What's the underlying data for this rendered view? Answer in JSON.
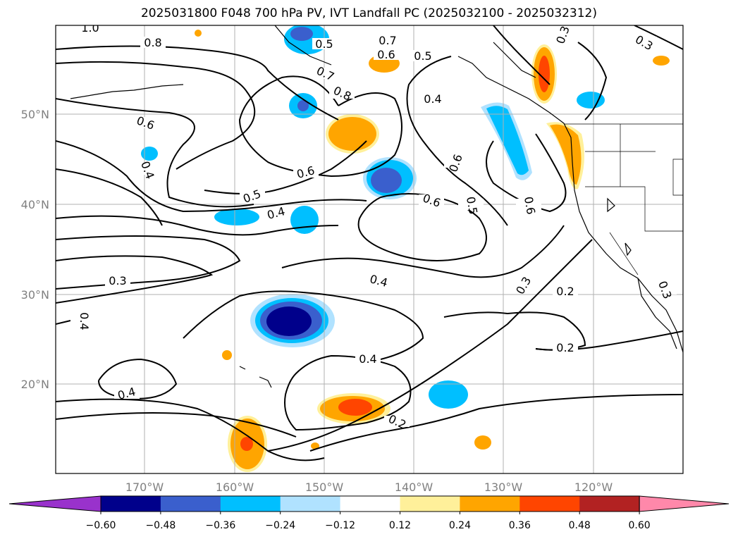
{
  "title": "2025031800 F048 700 hPa PV, IVT Landfall PC (2025032100 - 2025032312)",
  "axes": {
    "lon_ticks": [
      "170°W",
      "160°W",
      "150°W",
      "140°W",
      "130°W",
      "120°W"
    ],
    "lat_ticks": [
      "50°N",
      "40°N",
      "30°N",
      "20°N"
    ],
    "grid": true
  },
  "contour_labels": [
    "1.0",
    "0.8",
    "0.7",
    "0.5",
    "0.6",
    "0.5",
    "0.3",
    "0.3",
    "0.7",
    "0.8",
    "0.4",
    "0.6",
    "0.4",
    "0.6",
    "0.6",
    "0.5",
    "0.5",
    "0.4",
    "0.6",
    "0.6",
    "0.3",
    "0.4",
    "0.3",
    "0.2",
    "0.4",
    "0.2",
    "0.4",
    "0.4",
    "0.2",
    "0.3"
  ],
  "colorbar": {
    "ticks": [
      "−0.60",
      "−0.48",
      "−0.36",
      "−0.24",
      "−0.12",
      "0.12",
      "0.24",
      "0.36",
      "0.48",
      "0.60"
    ],
    "colors": [
      "#9932cc",
      "#00008b",
      "#3a5fcd",
      "#00bfff",
      "#b0e2ff",
      "#ffffff",
      "#fff09a",
      "#ffa500",
      "#ff4500",
      "#b22222",
      "#ff88aa"
    ],
    "extend": "both"
  }
}
